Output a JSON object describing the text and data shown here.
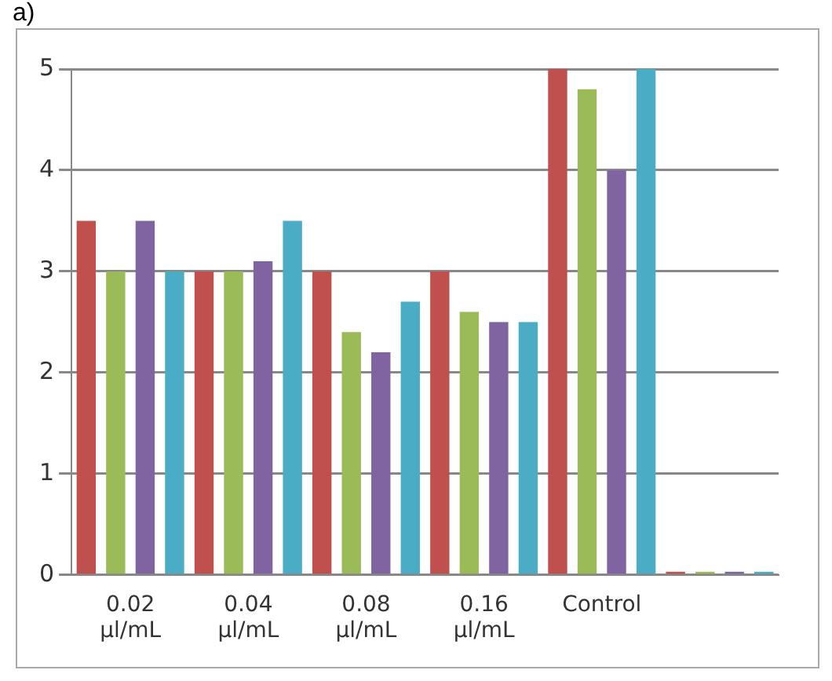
{
  "chart_data": {
    "type": "bar",
    "annotations": [
      "a)"
    ],
    "categories": [
      "0.02 µl/mL",
      "0.04 µl/mL",
      "0.08 µl/mL",
      "0.16 µl/mL",
      "Control",
      null
    ],
    "series": [
      {
        "color": "#c0504d",
        "values": [
          3.5,
          3.0,
          3.0,
          3.0,
          5.0,
          0
        ]
      },
      {
        "color": "#9bbb59",
        "values": [
          3.0,
          3.0,
          2.4,
          2.6,
          4.8,
          0
        ]
      },
      {
        "color": "#8064a2",
        "values": [
          3.5,
          3.1,
          2.2,
          2.5,
          4.0,
          0
        ]
      },
      {
        "color": "#4bacc6",
        "values": [
          3.0,
          3.5,
          2.7,
          2.5,
          5.0,
          0
        ]
      }
    ],
    "ylim": [
      0,
      5
    ],
    "yticks": [
      0,
      1,
      2,
      3,
      4,
      5
    ],
    "grid": "y",
    "legend": false
  }
}
